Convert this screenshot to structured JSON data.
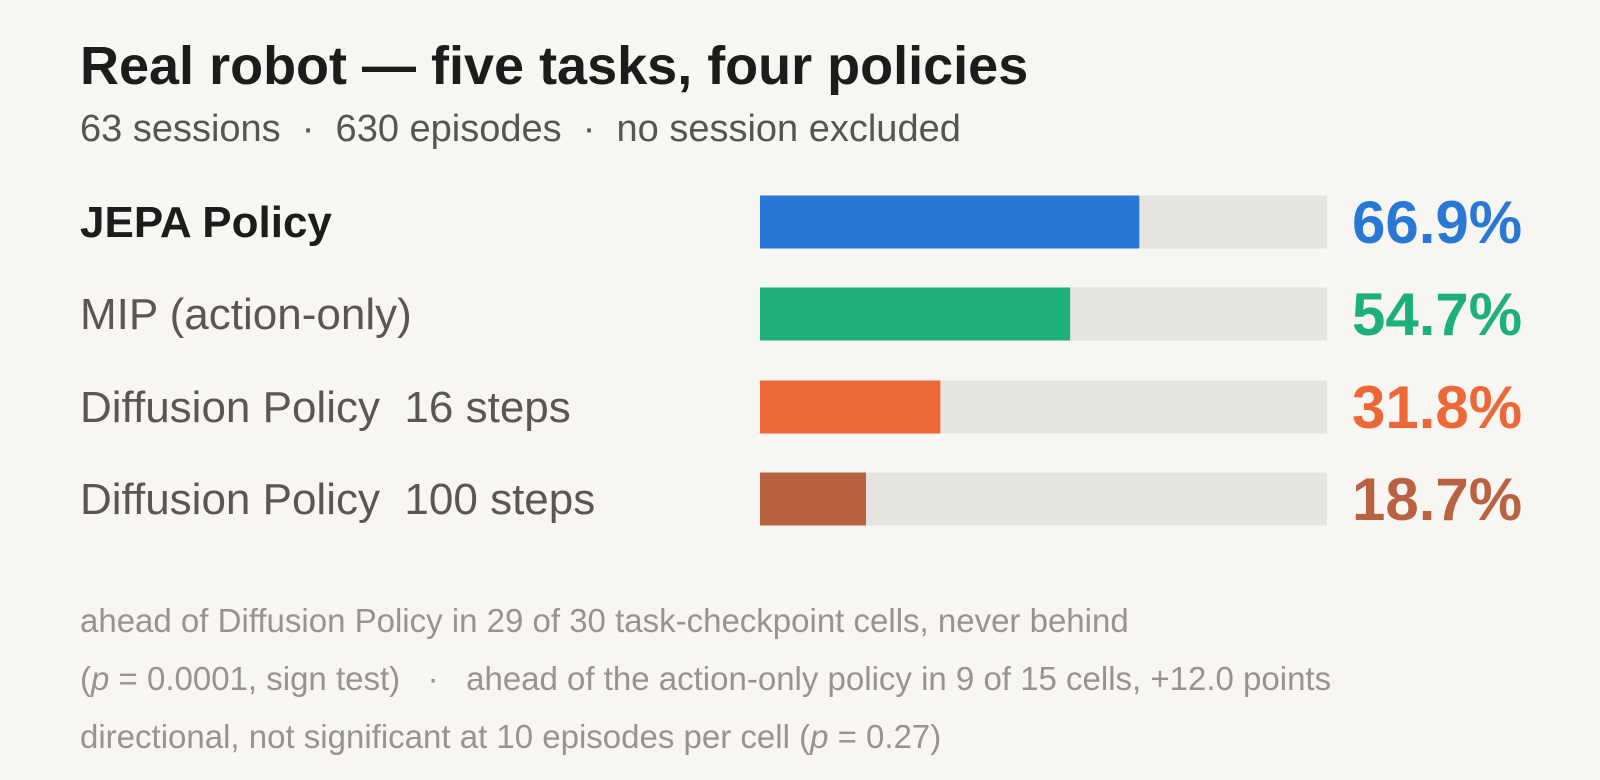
{
  "chart_data": {
    "type": "bar",
    "orientation": "horizontal",
    "title": "Real robot — five tasks, four policies",
    "subtitle": "63 sessions  ·  630 episodes  ·  no session excluded",
    "categories": [
      "JEPA Policy",
      "MIP (action-only)",
      "Diffusion Policy  16 steps",
      "Diffusion Policy  100 steps"
    ],
    "values": [
      66.9,
      54.7,
      31.8,
      18.7
    ],
    "value_labels": [
      "66.9%",
      "54.7%",
      "31.8%",
      "18.7%"
    ],
    "colors": [
      "#2a78d6",
      "#1db07a",
      "#ec6836",
      "#b86242"
    ],
    "highlight": "JEPA Policy",
    "xlim": [
      0,
      100
    ],
    "notes": [
      [
        {
          "text": "ahead of Diffusion Policy in 29 of 30 task-checkpoint cells, never behind"
        }
      ],
      [
        {
          "text": "("
        },
        {
          "text": "p",
          "italic": true
        },
        {
          "text": " = 0.0001, sign test)   ·   ahead of the action-only policy in 9 of 15 cells, +12.0 points"
        }
      ],
      [
        {
          "text": "directional, not significant at 10 episodes per cell ("
        },
        {
          "text": "p",
          "italic": true
        },
        {
          "text": " = 0.27)"
        }
      ]
    ]
  }
}
